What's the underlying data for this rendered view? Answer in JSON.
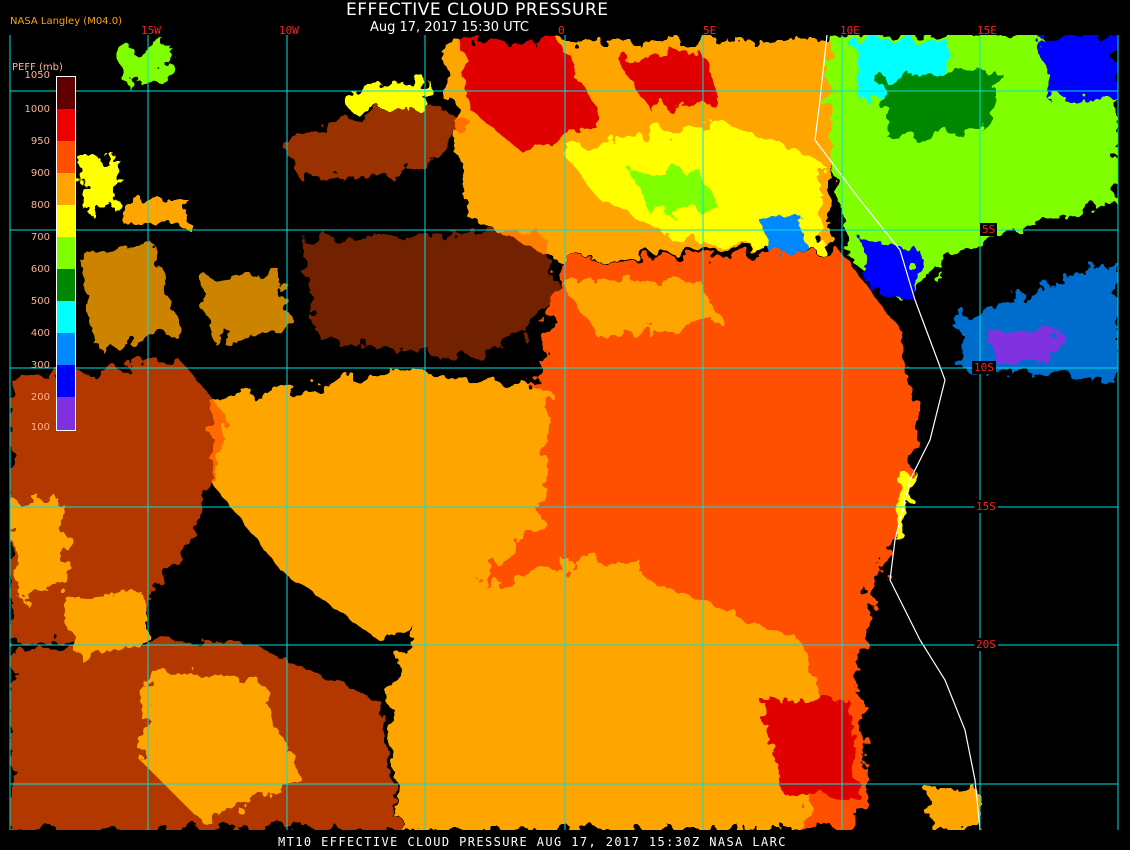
{
  "header": {
    "title": "EFFECTIVE CLOUD PRESSURE",
    "subtitle": "Aug 17, 2017 15:30 UTC",
    "source": "NASA Langley (M04.0)"
  },
  "footer": {
    "caption": "MT10  EFFECTIVE CLOUD PRESSURE  AUG 17, 2017 15:30Z  NASA LARC"
  },
  "map": {
    "longitude_labels": [
      "15W",
      "10W",
      "0",
      "5E",
      "10E",
      "15E"
    ],
    "latitude_labels": [
      "5S",
      "10S",
      "15S",
      "20S"
    ],
    "grid_color": "#00e0e0",
    "coastline_color": "#ffffff"
  },
  "legend": {
    "title": "PEFF (mb)",
    "ticks": [
      "1050",
      "1000",
      "950",
      "900",
      "800",
      "700",
      "600",
      "500",
      "400",
      "300",
      "200",
      "100"
    ],
    "colors": [
      {
        "range": "1000-1050",
        "color": "#600000"
      },
      {
        "range": "950-1000",
        "color": "#f00000"
      },
      {
        "range": "900-950",
        "color": "#ff5000"
      },
      {
        "range": "800-900",
        "color": "#ffa500"
      },
      {
        "range": "700-800",
        "color": "#ffff00"
      },
      {
        "range": "600-700",
        "color": "#80ff00"
      },
      {
        "range": "500-600",
        "color": "#008800"
      },
      {
        "range": "400-500",
        "color": "#00ffff"
      },
      {
        "range": "300-400",
        "color": "#0088ff"
      },
      {
        "range": "200-300",
        "color": "#0000ff"
      },
      {
        "range": "100-200",
        "color": "#8030e0"
      }
    ]
  }
}
